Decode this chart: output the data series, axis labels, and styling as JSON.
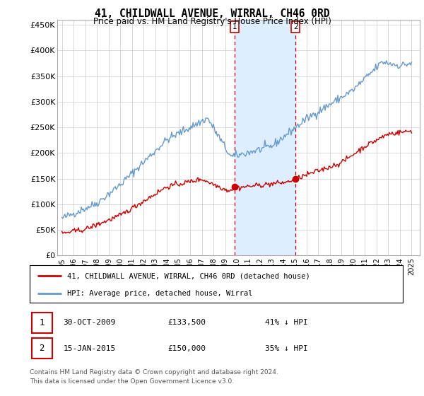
{
  "title": "41, CHILDWALL AVENUE, WIRRAL, CH46 0RD",
  "subtitle": "Price paid vs. HM Land Registry's House Price Index (HPI)",
  "ylim": [
    0,
    460000
  ],
  "yticks": [
    0,
    50000,
    100000,
    150000,
    200000,
    250000,
    300000,
    350000,
    400000,
    450000
  ],
  "ytick_labels": [
    "£0",
    "£50K",
    "£100K",
    "£150K",
    "£200K",
    "£250K",
    "£300K",
    "£350K",
    "£400K",
    "£450K"
  ],
  "legend_line1": "41, CHILDWALL AVENUE, WIRRAL, CH46 0RD (detached house)",
  "legend_line2": "HPI: Average price, detached house, Wirral",
  "marker1_date": "30-OCT-2009",
  "marker1_price": 133500,
  "marker1_pricefmt": "£133,500",
  "marker1_pct": "41% ↓ HPI",
  "marker2_date": "15-JAN-2015",
  "marker2_price": 150000,
  "marker2_pricefmt": "£150,000",
  "marker2_pct": "35% ↓ HPI",
  "footer1": "Contains HM Land Registry data © Crown copyright and database right 2024.",
  "footer2": "This data is licensed under the Open Government Licence v3.0.",
  "red_color": "#cc0000",
  "blue_color": "#6699cc",
  "shade_color": "#ddeeff",
  "background_color": "#ffffff",
  "grid_color": "#cccccc",
  "marker1_x": 2009.83,
  "marker2_x": 2015.04
}
